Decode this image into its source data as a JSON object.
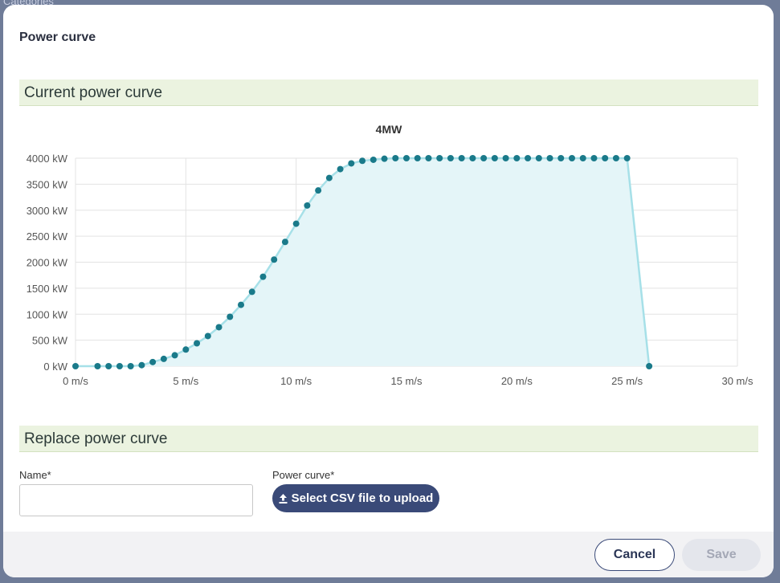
{
  "dialog": {
    "title": "Power curve",
    "current_section_title": "Current power curve",
    "replace_section_title": "Replace power curve",
    "name_label": "Name*",
    "name_value": "",
    "power_curve_label": "Power curve*",
    "upload_button_label": "Select CSV file to upload",
    "upload_icon": "upload-icon",
    "cancel_label": "Cancel",
    "save_label": "Save"
  },
  "background": {
    "partial_text": "Categories"
  },
  "colors": {
    "accent": "#3a4a78",
    "section_bg": "#ebf3e0",
    "series_line": "#a6e0e8",
    "series_fill": "#e4f5f8",
    "series_point": "#1a7a8a"
  },
  "chart_data": {
    "type": "area",
    "title": "4MW",
    "xlabel": "",
    "ylabel": "",
    "x_unit": "m/s",
    "y_unit": "kW",
    "xlim": [
      0,
      30
    ],
    "ylim": [
      0,
      4000
    ],
    "x_ticks": [
      "0 m/s",
      "5 m/s",
      "10 m/s",
      "15 m/s",
      "20 m/s",
      "25 m/s",
      "30 m/s"
    ],
    "y_ticks": [
      "0 kW",
      "500 kW",
      "1000 kW",
      "1500 kW",
      "2000 kW",
      "2500 kW",
      "3000 kW",
      "3500 kW",
      "4000 kW"
    ],
    "grid": true,
    "legend": "none",
    "series": [
      {
        "x": [
          0,
          1,
          1.5,
          2,
          2.5,
          3,
          3.5,
          4,
          4.5,
          5,
          5.5,
          6,
          6.5,
          7,
          7.5,
          8,
          8.5,
          9,
          9.5,
          10,
          10.5,
          11,
          11.5,
          12,
          12.5,
          13,
          13.5,
          14,
          14.5,
          15,
          15.5,
          16,
          16.5,
          17,
          17.5,
          18,
          18.5,
          19,
          19.5,
          20,
          20.5,
          21,
          21.5,
          22,
          22.5,
          23,
          23.5,
          24,
          24.5,
          25,
          26
        ],
        "y": [
          0,
          0,
          0,
          0,
          0,
          20,
          80,
          140,
          210,
          320,
          440,
          580,
          750,
          950,
          1180,
          1430,
          1720,
          2050,
          2390,
          2740,
          3090,
          3380,
          3620,
          3790,
          3900,
          3950,
          3970,
          3990,
          4000,
          4000,
          4000,
          4000,
          4000,
          4000,
          4000,
          4000,
          4000,
          4000,
          4000,
          4000,
          4000,
          4000,
          4000,
          4000,
          4000,
          4000,
          4000,
          4000,
          4000,
          4000,
          0
        ]
      }
    ]
  }
}
